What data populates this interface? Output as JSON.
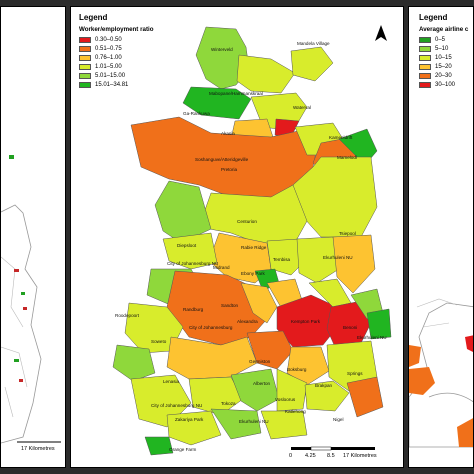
{
  "middle": {
    "legend": {
      "title": "Legend",
      "subtitle": "Worker/employment ratio",
      "items": [
        {
          "label": "0.30–0.50",
          "color": "#e31a1c"
        },
        {
          "label": "0.51–0.75",
          "color": "#f0701a"
        },
        {
          "label": "0.76–1.00",
          "color": "#fdc331"
        },
        {
          "label": "1.01–5.00",
          "color": "#d8ec2c"
        },
        {
          "label": "5.01–15.00",
          "color": "#8fd83b"
        },
        {
          "label": "15.01–34.81",
          "color": "#21b521"
        }
      ]
    },
    "places": [
      "Winterveld",
      "Mandela Village",
      "Mabopane/Hammanskraal",
      "Ga-Rankuwa",
      "Akasia",
      "Waterval",
      "Pretoria",
      "Kameeldrift",
      "Mamelodi",
      "Soshanguve/Atteridgeville",
      "Centurion",
      "Tsiepool",
      "Diepsloot",
      "City of Johannesburg NU",
      "Ekurhuleni NU",
      "Midrand",
      "Ebony Park",
      "Tembisa",
      "Randburg",
      "Sandton",
      "Alexandra",
      "Kempton Park",
      "Benoni",
      "Ekurhuleni NU",
      "City of Johannesburg",
      "Soweto",
      "Germiston",
      "Boksburg",
      "Springs",
      "Brakpan",
      "Alberton",
      "Tokoza",
      "Vosloorus",
      "Lenasia",
      "City of Johannesburg NU",
      "Zakariya Park",
      "Ekurhuleni NU",
      "Orange Farm",
      "Nigel",
      "Katlehong",
      "Roodepoort",
      "Rabie Ridge"
    ],
    "scale": {
      "ticks": [
        "0",
        "4.25",
        "8.5",
        "17 Kilometres"
      ]
    }
  },
  "left": {
    "scale_label": "17 Kilometres"
  },
  "right": {
    "legend": {
      "title": "Legend",
      "subtitle": "Average airline c",
      "items": [
        {
          "label": "0–5",
          "color": "#21a021"
        },
        {
          "label": "5–10",
          "color": "#8fd83b"
        },
        {
          "label": "10–15",
          "color": "#d8ec2c"
        },
        {
          "label": "15–20",
          "color": "#fdc331"
        },
        {
          "label": "20–30",
          "color": "#f0701a"
        },
        {
          "label": "30–100",
          "color": "#e31a1c"
        }
      ]
    }
  }
}
